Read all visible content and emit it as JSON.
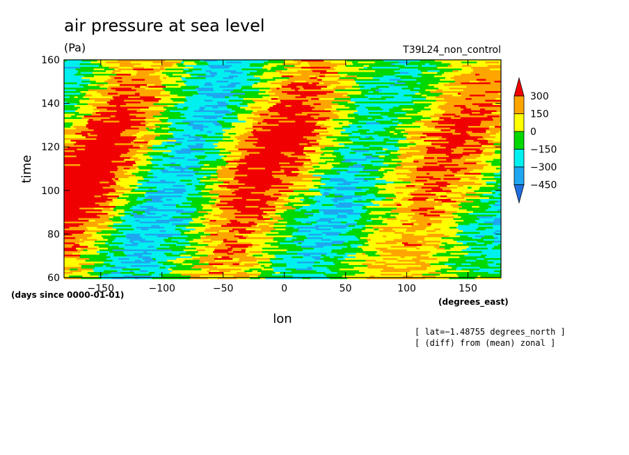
{
  "chart_data": {
    "type": "heatmap",
    "title": "air pressure at sea level",
    "units": "(Pa)",
    "experiment": "T39L24_non_control",
    "xlabel": "lon",
    "x_units": "(degrees_east)",
    "ylabel": "time",
    "y_units": "(days since 0000-01-01)",
    "xlim": [
      -180,
      177
    ],
    "ylim": [
      60,
      160
    ],
    "x_ticks": [
      -150,
      -100,
      -50,
      0,
      50,
      100,
      150
    ],
    "x_tick_labels": [
      "−150",
      "−100",
      "−50",
      "0",
      "50",
      "100",
      "150"
    ],
    "y_ticks": [
      60,
      80,
      100,
      120,
      140,
      160
    ],
    "y_tick_labels": [
      "60",
      "80",
      "100",
      "120",
      "140",
      "160"
    ],
    "colorbar": {
      "levels": [
        -450,
        -300,
        -150,
        0,
        150,
        300
      ],
      "labels": [
        "300",
        "150",
        "0",
        "−150",
        "−300",
        "−450"
      ],
      "colors": [
        "#1f6fe0",
        "#1ea7f0",
        "#00f0f0",
        "#00d800",
        "#ffff00",
        "#ffa500",
        "#f00000"
      ],
      "extend": "both"
    },
    "notes": [
      "[ lat=−1.48755 degrees_north ]",
      "[ (diff) from (mean) zonal ]"
    ],
    "grid": false
  }
}
